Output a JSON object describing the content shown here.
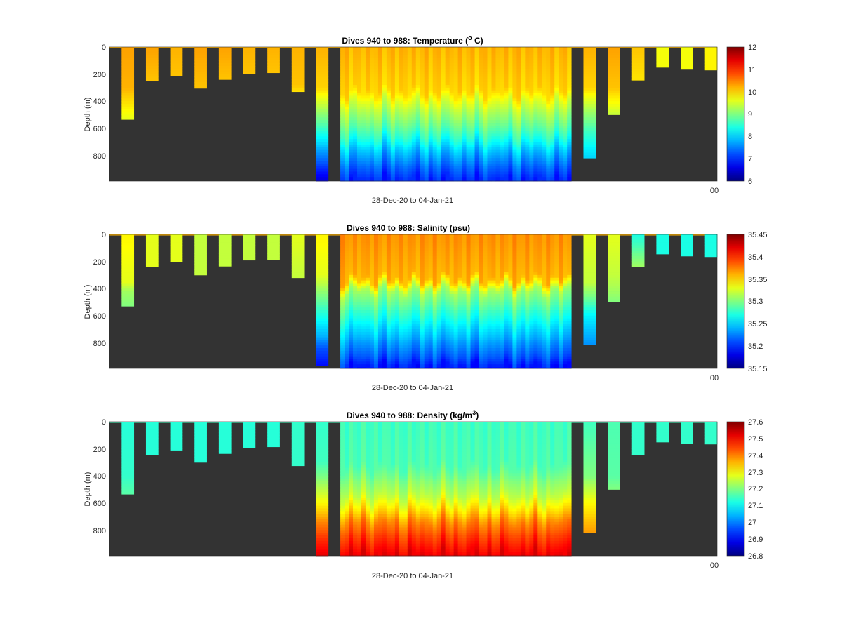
{
  "chart_data": [
    {
      "type": "heatmap",
      "title": "Dives 940 to 988: Temperature (",
      "title_sup": "o",
      "title_tail": " C)",
      "xlabel": "28-Dec-20 to 04-Jan-21",
      "ylabel": "Depth (m)",
      "yticks": [
        "0",
        "200",
        "400",
        "600",
        "800"
      ],
      "ylim": [
        0,
        990
      ],
      "xtick_label": "00",
      "colorbar": {
        "min": 6,
        "max": 12,
        "ticks": [
          "6",
          "7",
          "8",
          "9",
          "10",
          "11",
          "12"
        ]
      },
      "surface_value": 10.2,
      "profiles": [
        {
          "x0": 0.02,
          "x1": 0.04,
          "depth": 535,
          "v": [
            [
              0,
              10.3
            ],
            [
              300,
              10.2
            ],
            [
              420,
              9.9
            ],
            [
              535,
              9.6
            ]
          ]
        },
        {
          "x0": 0.06,
          "x1": 0.08,
          "depth": 250,
          "v": [
            [
              0,
              10.3
            ],
            [
              250,
              10.1
            ]
          ]
        },
        {
          "x0": 0.1,
          "x1": 0.12,
          "depth": 215,
          "v": [
            [
              0,
              10.2
            ],
            [
              215,
              10.1
            ]
          ]
        },
        {
          "x0": 0.14,
          "x1": 0.16,
          "depth": 305,
          "v": [
            [
              0,
              10.3
            ],
            [
              305,
              10.1
            ]
          ]
        },
        {
          "x0": 0.18,
          "x1": 0.2,
          "depth": 240,
          "v": [
            [
              0,
              10.3
            ],
            [
              240,
              10.1
            ]
          ]
        },
        {
          "x0": 0.22,
          "x1": 0.24,
          "depth": 195,
          "v": [
            [
              0,
              10.2
            ],
            [
              195,
              10.1
            ]
          ]
        },
        {
          "x0": 0.26,
          "x1": 0.28,
          "depth": 190,
          "v": [
            [
              0,
              10.2
            ],
            [
              190,
              10.1
            ]
          ]
        },
        {
          "x0": 0.3,
          "x1": 0.32,
          "depth": 330,
          "v": [
            [
              0,
              10.2
            ],
            [
              280,
              10.1
            ],
            [
              330,
              9.9
            ]
          ]
        },
        {
          "x0": 0.34,
          "x1": 0.36,
          "depth": 990,
          "v": [
            [
              0,
              10.2
            ],
            [
              300,
              10.0
            ],
            [
              450,
              9.3
            ],
            [
              600,
              8.6
            ],
            [
              750,
              7.8
            ],
            [
              900,
              7.0
            ],
            [
              990,
              6.5
            ]
          ]
        },
        {
          "x0": 0.38,
          "x1": 0.76,
          "depth": 990,
          "v": [
            [
              0,
              10.2
            ],
            [
              330,
              10.0
            ],
            [
              420,
              9.5
            ],
            [
              550,
              9.0
            ],
            [
              650,
              8.6
            ],
            [
              750,
              8.0
            ],
            [
              850,
              7.5
            ],
            [
              950,
              7.1
            ],
            [
              990,
              6.9
            ]
          ]
        },
        {
          "x0": 0.78,
          "x1": 0.8,
          "depth": 820,
          "v": [
            [
              0,
              10.2
            ],
            [
              300,
              10.0
            ],
            [
              450,
              9.3
            ],
            [
              600,
              8.7
            ],
            [
              750,
              8.2
            ],
            [
              820,
              8.0
            ]
          ]
        },
        {
          "x0": 0.82,
          "x1": 0.84,
          "depth": 500,
          "v": [
            [
              0,
              10.3
            ],
            [
              300,
              10.1
            ],
            [
              420,
              9.7
            ],
            [
              500,
              9.4
            ]
          ]
        },
        {
          "x0": 0.86,
          "x1": 0.88,
          "depth": 245,
          "v": [
            [
              0,
              10.1
            ],
            [
              245,
              9.9
            ]
          ]
        },
        {
          "x0": 0.9,
          "x1": 0.92,
          "depth": 150,
          "v": [
            [
              0,
              9.7
            ],
            [
              150,
              9.7
            ]
          ]
        },
        {
          "x0": 0.94,
          "x1": 0.96,
          "depth": 165,
          "v": [
            [
              0,
              9.7
            ],
            [
              165,
              9.7
            ]
          ]
        },
        {
          "x0": 0.98,
          "x1": 1.0,
          "depth": 170,
          "v": [
            [
              0,
              9.8
            ],
            [
              170,
              9.8
            ]
          ]
        }
      ]
    },
    {
      "type": "heatmap",
      "title": "Dives 940 to 988: Salinity (psu)",
      "title_sup": "",
      "title_tail": "",
      "xlabel": "28-Dec-20 to 04-Jan-21",
      "ylabel": "Depth (m)",
      "yticks": [
        "0",
        "200",
        "400",
        "600",
        "800"
      ],
      "ylim": [
        0,
        990
      ],
      "xtick_label": "00",
      "colorbar": {
        "min": 35.15,
        "max": 35.45,
        "ticks": [
          "35.15",
          "35.2",
          "35.25",
          "35.3",
          "35.35",
          "35.4",
          "35.45"
        ]
      },
      "surface_value": 35.36,
      "profiles": [
        {
          "x0": 0.02,
          "x1": 0.04,
          "depth": 530,
          "v": [
            [
              0,
              35.34
            ],
            [
              350,
              35.33
            ],
            [
              420,
              35.31
            ],
            [
              530,
              35.3
            ]
          ]
        },
        {
          "x0": 0.06,
          "x1": 0.08,
          "depth": 240,
          "v": [
            [
              0,
              35.33
            ],
            [
              240,
              35.33
            ]
          ]
        },
        {
          "x0": 0.1,
          "x1": 0.12,
          "depth": 205,
          "v": [
            [
              0,
              35.33
            ],
            [
              205,
              35.33
            ]
          ]
        },
        {
          "x0": 0.14,
          "x1": 0.16,
          "depth": 300,
          "v": [
            [
              0,
              35.32
            ],
            [
              300,
              35.32
            ]
          ]
        },
        {
          "x0": 0.18,
          "x1": 0.2,
          "depth": 235,
          "v": [
            [
              0,
              35.32
            ],
            [
              235,
              35.32
            ]
          ]
        },
        {
          "x0": 0.22,
          "x1": 0.24,
          "depth": 190,
          "v": [
            [
              0,
              35.32
            ],
            [
              190,
              35.32
            ]
          ]
        },
        {
          "x0": 0.26,
          "x1": 0.28,
          "depth": 185,
          "v": [
            [
              0,
              35.32
            ],
            [
              185,
              35.32
            ]
          ]
        },
        {
          "x0": 0.3,
          "x1": 0.32,
          "depth": 320,
          "v": [
            [
              0,
              35.33
            ],
            [
              320,
              35.32
            ]
          ]
        },
        {
          "x0": 0.34,
          "x1": 0.36,
          "depth": 970,
          "v": [
            [
              0,
              35.34
            ],
            [
              300,
              35.33
            ],
            [
              450,
              35.3
            ],
            [
              600,
              35.27
            ],
            [
              750,
              35.24
            ],
            [
              850,
              35.21
            ],
            [
              970,
              35.19
            ]
          ]
        },
        {
          "x0": 0.38,
          "x1": 0.76,
          "depth": 990,
          "v": [
            [
              0,
              35.37
            ],
            [
              330,
              35.36
            ],
            [
              420,
              35.31
            ],
            [
              520,
              35.29
            ],
            [
              620,
              35.27
            ],
            [
              720,
              35.25
            ],
            [
              820,
              35.23
            ],
            [
              920,
              35.21
            ],
            [
              990,
              35.19
            ]
          ]
        },
        {
          "x0": 0.78,
          "x1": 0.8,
          "depth": 815,
          "v": [
            [
              0,
              35.33
            ],
            [
              350,
              35.32
            ],
            [
              450,
              35.3
            ],
            [
              600,
              35.26
            ],
            [
              815,
              35.23
            ]
          ]
        },
        {
          "x0": 0.82,
          "x1": 0.84,
          "depth": 500,
          "v": [
            [
              0,
              35.33
            ],
            [
              300,
              35.32
            ],
            [
              420,
              35.31
            ],
            [
              500,
              35.3
            ]
          ]
        },
        {
          "x0": 0.86,
          "x1": 0.88,
          "depth": 240,
          "v": [
            [
              0,
              35.27
            ],
            [
              120,
              35.29
            ],
            [
              240,
              35.31
            ]
          ]
        },
        {
          "x0": 0.9,
          "x1": 0.92,
          "depth": 145,
          "v": [
            [
              0,
              35.27
            ],
            [
              145,
              35.27
            ]
          ]
        },
        {
          "x0": 0.94,
          "x1": 0.96,
          "depth": 160,
          "v": [
            [
              0,
              35.27
            ],
            [
              160,
              35.27
            ]
          ]
        },
        {
          "x0": 0.98,
          "x1": 1.0,
          "depth": 165,
          "v": [
            [
              0,
              35.27
            ],
            [
              165,
              35.27
            ]
          ]
        }
      ]
    },
    {
      "type": "heatmap",
      "title": "Dives 940 to 988: Density (kg/m",
      "title_sup": "3",
      "title_tail": ")",
      "xlabel": "28-Dec-20 to 04-Jan-21",
      "ylabel": "Depth (m)",
      "yticks": [
        "0",
        "200",
        "400",
        "600",
        "800"
      ],
      "ylim": [
        0,
        990
      ],
      "xtick_label": "00",
      "colorbar": {
        "min": 26.8,
        "max": 27.6,
        "ticks": [
          "26.8",
          "26.9",
          "27",
          "27.1",
          "27.2",
          "27.3",
          "27.4",
          "27.5",
          "27.6"
        ]
      },
      "surface_value": 27.15,
      "profiles": [
        {
          "x0": 0.02,
          "x1": 0.04,
          "depth": 535,
          "v": [
            [
              0,
              27.13
            ],
            [
              400,
              27.14
            ],
            [
              535,
              27.17
            ]
          ]
        },
        {
          "x0": 0.06,
          "x1": 0.08,
          "depth": 245,
          "v": [
            [
              0,
              27.13
            ],
            [
              245,
              27.13
            ]
          ]
        },
        {
          "x0": 0.1,
          "x1": 0.12,
          "depth": 210,
          "v": [
            [
              0,
              27.13
            ],
            [
              210,
              27.13
            ]
          ]
        },
        {
          "x0": 0.14,
          "x1": 0.16,
          "depth": 300,
          "v": [
            [
              0,
              27.13
            ],
            [
              300,
              27.13
            ]
          ]
        },
        {
          "x0": 0.18,
          "x1": 0.2,
          "depth": 235,
          "v": [
            [
              0,
              27.13
            ],
            [
              235,
              27.13
            ]
          ]
        },
        {
          "x0": 0.22,
          "x1": 0.24,
          "depth": 190,
          "v": [
            [
              0,
              27.13
            ],
            [
              190,
              27.13
            ]
          ]
        },
        {
          "x0": 0.26,
          "x1": 0.28,
          "depth": 185,
          "v": [
            [
              0,
              27.13
            ],
            [
              185,
              27.13
            ]
          ]
        },
        {
          "x0": 0.3,
          "x1": 0.32,
          "depth": 325,
          "v": [
            [
              0,
              27.14
            ],
            [
              325,
              27.14
            ]
          ]
        },
        {
          "x0": 0.34,
          "x1": 0.36,
          "depth": 990,
          "v": [
            [
              0,
              27.14
            ],
            [
              300,
              27.15
            ],
            [
              450,
              27.22
            ],
            [
              600,
              27.3
            ],
            [
              750,
              27.4
            ],
            [
              900,
              27.48
            ],
            [
              990,
              27.52
            ]
          ]
        },
        {
          "x0": 0.38,
          "x1": 0.76,
          "depth": 990,
          "v": [
            [
              0,
              27.15
            ],
            [
              330,
              27.16
            ],
            [
              420,
              27.2
            ],
            [
              550,
              27.25
            ],
            [
              650,
              27.32
            ],
            [
              750,
              27.4
            ],
            [
              850,
              27.45
            ],
            [
              950,
              27.5
            ],
            [
              990,
              27.52
            ]
          ]
        },
        {
          "x0": 0.78,
          "x1": 0.8,
          "depth": 820,
          "v": [
            [
              0,
              27.15
            ],
            [
              400,
              27.2
            ],
            [
              600,
              27.3
            ],
            [
              820,
              27.38
            ]
          ]
        },
        {
          "x0": 0.82,
          "x1": 0.84,
          "depth": 500,
          "v": [
            [
              0,
              27.16
            ],
            [
              400,
              27.17
            ],
            [
              500,
              27.2
            ]
          ]
        },
        {
          "x0": 0.86,
          "x1": 0.88,
          "depth": 245,
          "v": [
            [
              0,
              27.14
            ],
            [
              245,
              27.14
            ]
          ]
        },
        {
          "x0": 0.9,
          "x1": 0.92,
          "depth": 150,
          "v": [
            [
              0,
              27.14
            ],
            [
              150,
              27.14
            ]
          ]
        },
        {
          "x0": 0.94,
          "x1": 0.96,
          "depth": 160,
          "v": [
            [
              0,
              27.14
            ],
            [
              160,
              27.14
            ]
          ]
        },
        {
          "x0": 0.98,
          "x1": 1.0,
          "depth": 165,
          "v": [
            [
              0,
              27.14
            ],
            [
              165,
              27.14
            ]
          ]
        }
      ]
    }
  ],
  "colors": {
    "background_fill": "#333333",
    "colormap": "jet"
  }
}
